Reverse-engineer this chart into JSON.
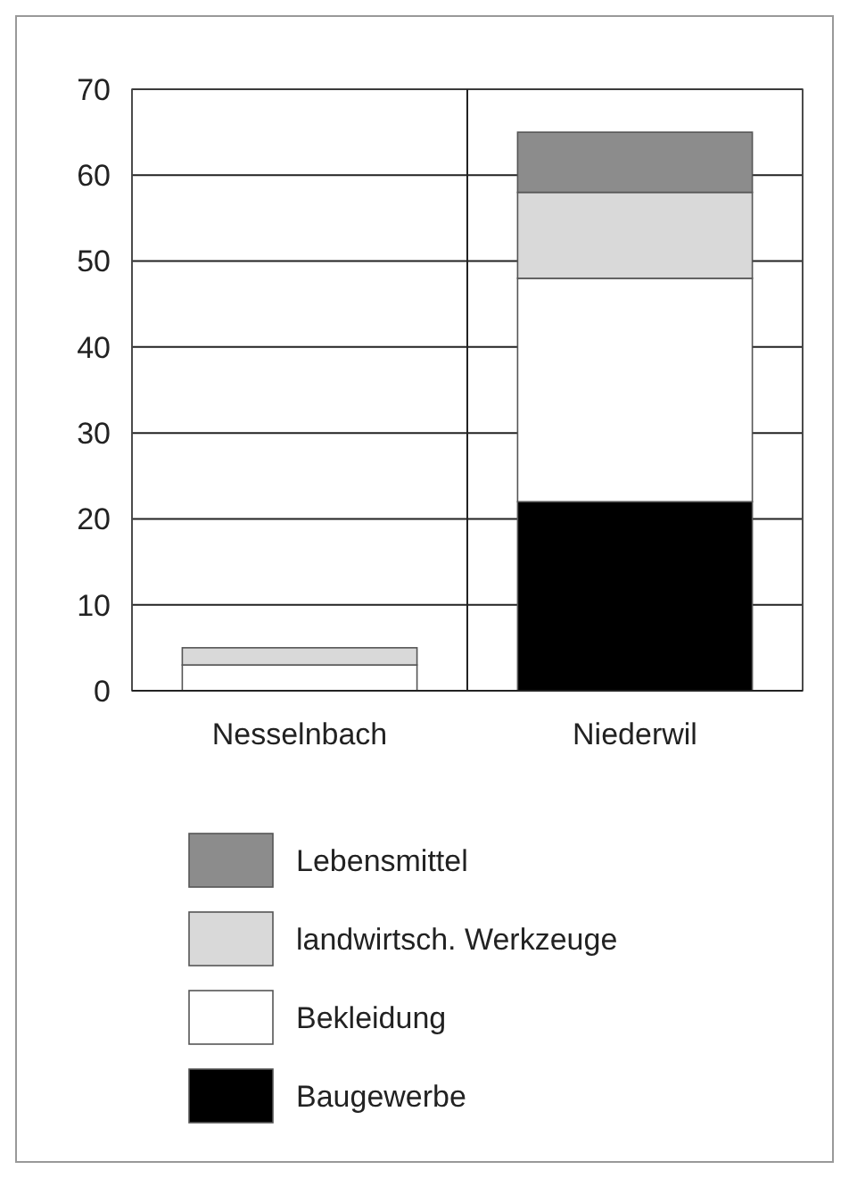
{
  "chart_data": {
    "type": "bar",
    "stacked": true,
    "categories": [
      "Nesselnbach",
      "Niederwil"
    ],
    "series": [
      {
        "name": "Baugewerbe",
        "color": "#000000",
        "values": [
          0,
          22
        ]
      },
      {
        "name": "Bekleidung",
        "color": "#ffffff",
        "values": [
          3,
          26
        ]
      },
      {
        "name": "landwirtsch. Werkzeuge",
        "color": "#d9d9d9",
        "values": [
          2,
          10
        ]
      },
      {
        "name": "Lebensmittel",
        "color": "#8c8c8c",
        "values": [
          0,
          7
        ]
      }
    ],
    "ylim": [
      0,
      70
    ],
    "yticks": [
      0,
      10,
      20,
      30,
      40,
      50,
      60,
      70
    ],
    "grid": true,
    "legend": "bottom"
  }
}
